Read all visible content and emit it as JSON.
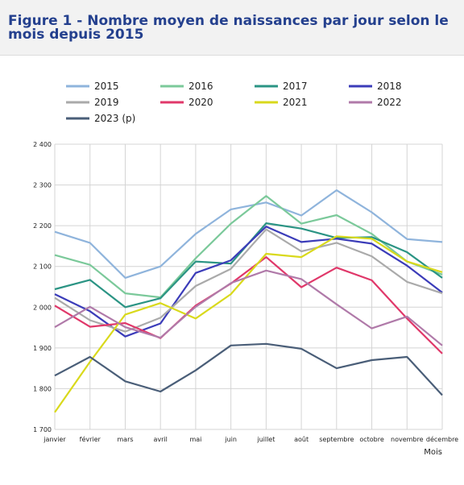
{
  "title": "Figure 1 - Nombre moyen de naissances par jour selon le mois depuis 2015",
  "chart_data": {
    "type": "line",
    "categories": [
      "janvier",
      "février",
      "mars",
      "avril",
      "mai",
      "juin",
      "juillet",
      "août",
      "septembre",
      "octobre",
      "novembre",
      "décembre"
    ],
    "xlabel": "Mois",
    "ylabel": "",
    "ylim": [
      1700,
      2400
    ],
    "yticks": [
      1700,
      1800,
      1900,
      2000,
      2100,
      2200,
      2300,
      2400
    ],
    "ytick_labels": [
      "1 700",
      "1 800",
      "1 900",
      "2 000",
      "2 100",
      "2 200",
      "2 300",
      "2 400"
    ],
    "grid": true,
    "legend_position": "top",
    "series": [
      {
        "name": "2015",
        "color": "#8fb4dc",
        "values": [
          2185,
          2158,
          2072,
          2100,
          2180,
          2240,
          2257,
          2225,
          2287,
          2233,
          2167,
          2160
        ]
      },
      {
        "name": "2016",
        "color": "#7bc99a",
        "values": [
          2128,
          2104,
          2034,
          2024,
          2120,
          2205,
          2273,
          2205,
          2226,
          2180,
          2112,
          2080
        ]
      },
      {
        "name": "2017",
        "color": "#2b9484",
        "values": [
          2044,
          2067,
          2000,
          2022,
          2112,
          2107,
          2206,
          2193,
          2170,
          2172,
          2135,
          2072
        ]
      },
      {
        "name": "2018",
        "color": "#3b3cb9",
        "values": [
          2032,
          1990,
          1928,
          1960,
          2084,
          2115,
          2198,
          2160,
          2168,
          2156,
          2102,
          2036
        ]
      },
      {
        "name": "2019",
        "color": "#aaaaaa",
        "values": [
          2023,
          1968,
          1940,
          1974,
          2052,
          2094,
          2191,
          2137,
          2158,
          2125,
          2062,
          2034
        ]
      },
      {
        "name": "2020",
        "color": "#e0386a",
        "values": [
          2004,
          1952,
          1961,
          1924,
          2004,
          2058,
          2123,
          2049,
          2097,
          2066,
          1972,
          1886
        ]
      },
      {
        "name": "2021",
        "color": "#d9d91c",
        "values": [
          1742,
          1866,
          1982,
          2010,
          1972,
          2032,
          2131,
          2123,
          2174,
          2168,
          2112,
          2086
        ]
      },
      {
        "name": "2022",
        "color": "#b07aa9",
        "values": [
          1951,
          2001,
          1951,
          1925,
          2001,
          2059,
          2090,
          2069,
          2007,
          1948,
          1977,
          1906
        ]
      },
      {
        "name": "2023 (p)",
        "color": "#4a5e78",
        "values": [
          1832,
          1878,
          1818,
          1793,
          1845,
          1906,
          1910,
          1898,
          1850,
          1870,
          1878,
          1784
        ]
      }
    ]
  }
}
